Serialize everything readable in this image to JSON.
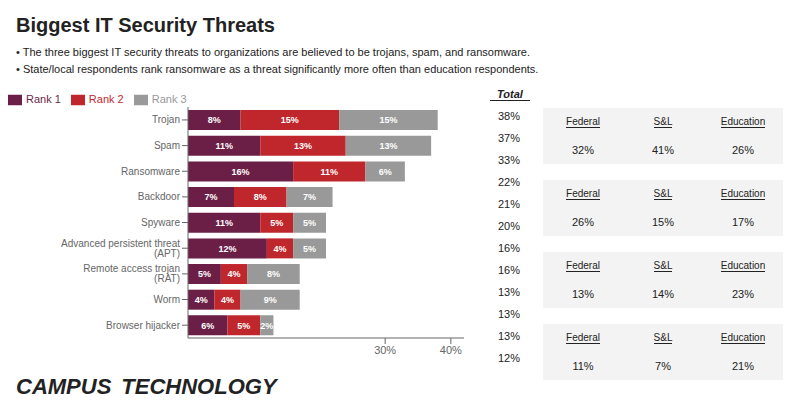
{
  "chart_data": {
    "type": "bar",
    "orientation": "horizontal",
    "stacked": true,
    "title": "Biggest IT Security Threats",
    "categories": [
      "Trojan",
      "Spam",
      "Ransomware",
      "Backdoor",
      "Spyware",
      "Advanced persistent threat (APT)",
      "Remote access trojan (RAT)",
      "Worm",
      "Browser hijacker"
    ],
    "series": [
      {
        "name": "Rank 1",
        "color": "#6b1f47",
        "values": [
          8,
          11,
          16,
          7,
          11,
          12,
          5,
          4,
          6
        ],
        "value_labels": [
          "8%",
          "11%",
          "16%",
          "7%",
          "11%",
          "12%",
          "5%",
          "4%",
          "6%"
        ]
      },
      {
        "name": "Rank 2",
        "color": "#c0272d",
        "values": [
          15,
          13,
          11,
          8,
          5,
          4,
          4,
          4,
          5
        ],
        "value_labels": [
          "15%",
          "13%",
          "11%",
          "8%",
          "5%",
          "4%",
          "4%",
          "4%",
          "5%"
        ]
      },
      {
        "name": "Rank 3",
        "color": "#999999",
        "values": [
          15,
          13,
          6,
          7,
          5,
          5,
          8,
          9,
          2
        ],
        "value_labels": [
          "15%",
          "13%",
          "6%",
          "7%",
          "5%",
          "5%",
          "8%",
          "9%",
          "2%"
        ]
      }
    ],
    "xlim": [
      0,
      42
    ],
    "xticks": [
      {
        "value": 30,
        "label": "30%"
      },
      {
        "value": 40,
        "label": "40%"
      }
    ],
    "data_labels": true,
    "legend": "upper left",
    "grid": false,
    "annotations": [
      "• The three biggest IT security threats to organizations are believed to be trojans, spam, and ransomware.",
      "• State/local respondents rank ransomware as a threat significantly more often than education respondents.",
      "Total",
      "38%",
      "37%",
      "33%",
      "22%",
      "21%",
      "20%",
      "16%",
      "16%",
      "13%",
      "13%",
      "13%",
      "12%",
      "Federal",
      "S&L",
      "Education",
      "32%",
      "41%",
      "26%",
      "Federal",
      "S&L",
      "Education",
      "26%",
      "15%",
      "17%",
      "Federal",
      "S&L",
      "Education",
      "13%",
      "14%",
      "23%",
      "Federal",
      "S&L",
      "Education",
      "11%",
      "7%",
      "21%",
      "CAMPUS",
      "TECHNOLOGY"
    ]
  }
}
